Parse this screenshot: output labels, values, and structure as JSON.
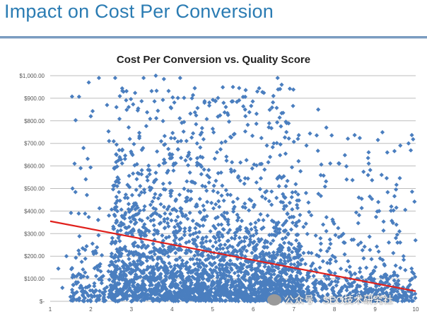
{
  "slide": {
    "title": "Impact on Cost Per Conversion"
  },
  "watermark": {
    "text": "公众号 · SEO技术研究社",
    "icon": "wechat-icon"
  },
  "chart_data": {
    "type": "scatter",
    "title": "Cost Per Conversion vs. Quality Score",
    "xlabel": "",
    "ylabel": "",
    "xlim": [
      1,
      10
    ],
    "ylim": [
      0,
      1000
    ],
    "x_ticks": [
      "1",
      "2",
      "3",
      "4",
      "5",
      "6",
      "7",
      "8",
      "9",
      "10"
    ],
    "y_ticks": [
      "$-",
      "$100.00",
      "$200.00",
      "$300.00",
      "$400.00",
      "$500.00",
      "$600.00",
      "$700.00",
      "$800.00",
      "$900.00",
      "$1,000.00"
    ],
    "grid": "horizontal",
    "legend": "none",
    "marker": "diamond",
    "colors": {
      "points": "#4a7ebf",
      "trendline": "#e0201c",
      "grid": "#bdbdbd"
    },
    "trendline": {
      "type": "linear",
      "points": [
        [
          1,
          355
        ],
        [
          10,
          45
        ]
      ]
    },
    "notable_points": [
      [
        1.2,
        145
      ],
      [
        1.3,
        60
      ],
      [
        1.4,
        200
      ],
      [
        1.5,
        20
      ],
      [
        1.6,
        110
      ],
      [
        1.7,
        225
      ],
      [
        1.8,
        235
      ],
      [
        1.55,
        500
      ],
      [
        1.6,
        610
      ],
      [
        1.75,
        590
      ],
      [
        1.95,
        970
      ],
      [
        2.2,
        990
      ],
      [
        2.0,
        820
      ],
      [
        2.4,
        870
      ],
      [
        2.6,
        990
      ],
      [
        3.3,
        990
      ],
      [
        3.6,
        1000
      ],
      [
        3.8,
        985
      ],
      [
        4.2,
        990
      ],
      [
        6.1,
        930
      ],
      [
        6.6,
        990
      ],
      [
        6.7,
        960
      ],
      [
        7.6,
        850
      ],
      [
        7.8,
        770
      ],
      [
        8.3,
        540
      ],
      [
        8.6,
        460
      ],
      [
        9.1,
        400
      ],
      [
        9.3,
        660
      ],
      [
        9.4,
        420
      ],
      [
        9.6,
        310
      ],
      [
        9.7,
        200
      ],
      [
        9.9,
        145
      ],
      [
        5.5,
        950
      ],
      [
        5.8,
        850
      ],
      [
        4.8,
        880
      ],
      [
        7.1,
        720
      ],
      [
        7.3,
        480
      ]
    ]
  }
}
